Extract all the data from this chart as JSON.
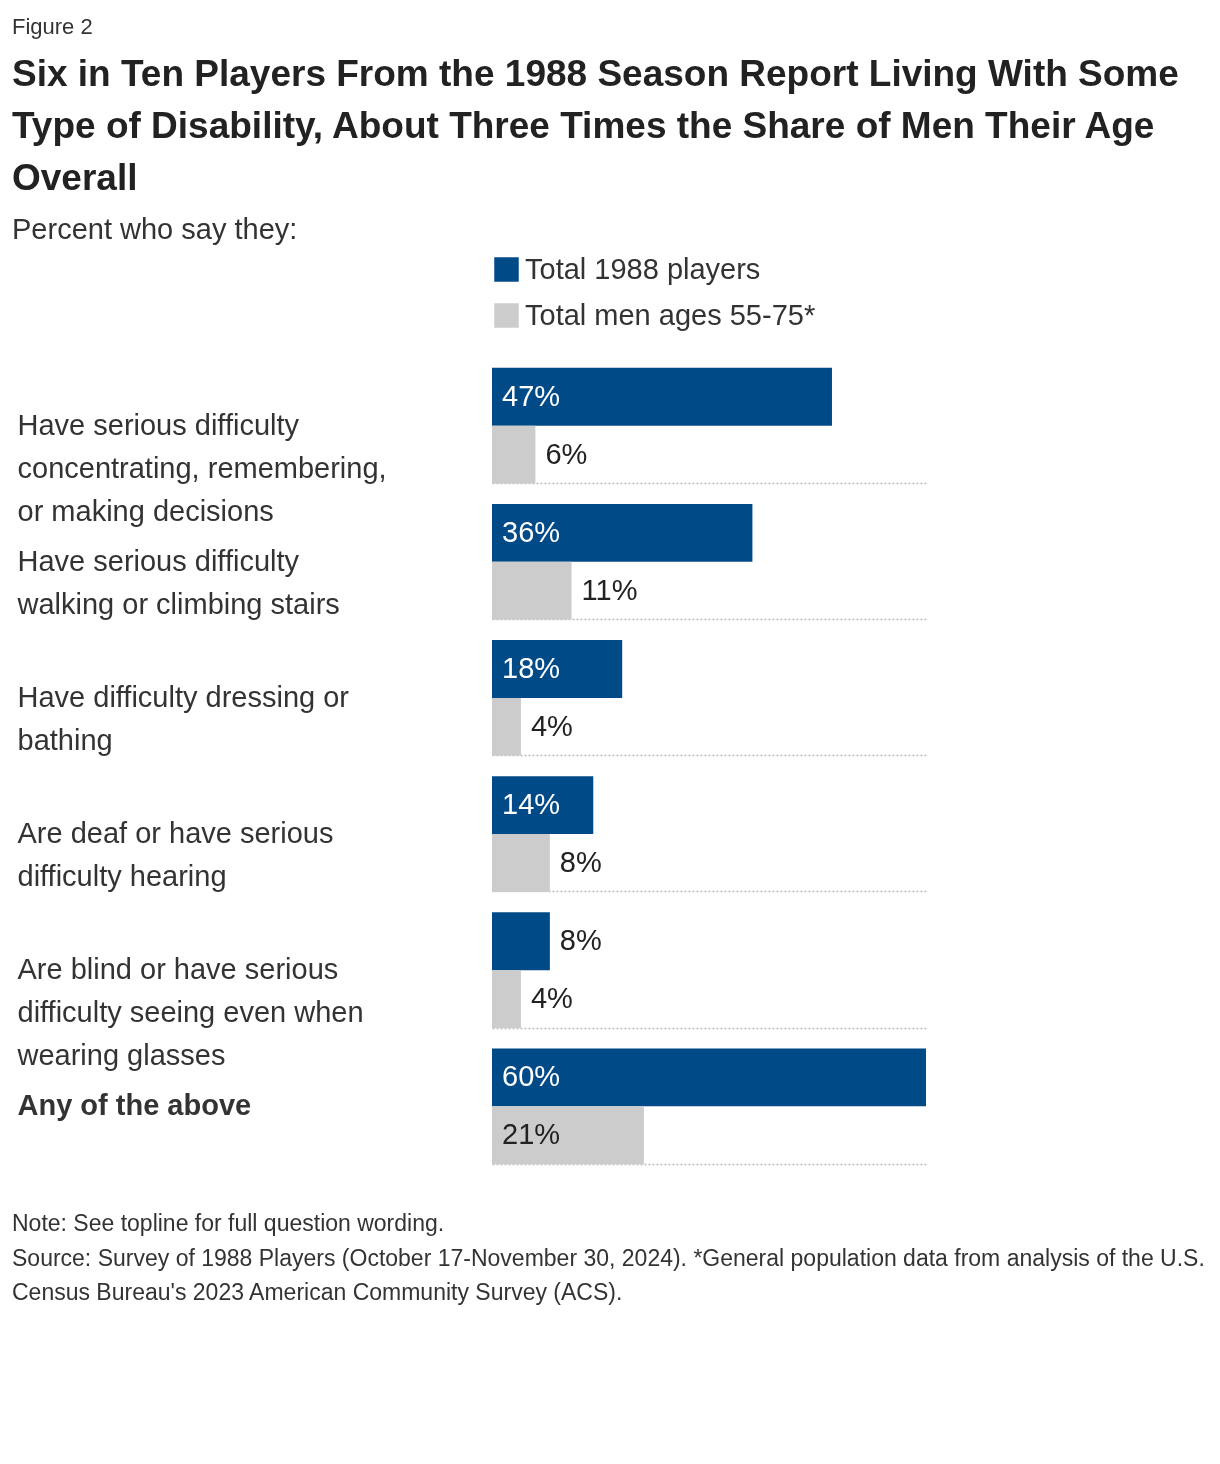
{
  "chart_data": {
    "type": "bar",
    "orientation": "horizontal",
    "title": "Six in Ten Players From the 1988 Season Report Living With Some Type of Disability, About Three Times the Share of Men Their Age Overall",
    "subtitle": "Percent who say they:",
    "categories": [
      "Have serious difficulty concentrating, remembering, or making decisions",
      "Have serious difficulty walking or climbing stairs",
      "Have difficulty dressing or bathing",
      "Are deaf or have serious difficulty hearing",
      "Are blind or have serious difficulty seeing even when wearing glasses",
      "Any of the above"
    ],
    "series": [
      {
        "name": "Total 1988 players",
        "color": "#004a87",
        "values": [
          47,
          36,
          18,
          14,
          8,
          60
        ],
        "value_labels": [
          "47%",
          "36%",
          "18%",
          "14%",
          "8%",
          "60%"
        ]
      },
      {
        "name": "Total men ages 55-75*",
        "color": "#cccccc",
        "values": [
          6,
          11,
          4,
          8,
          4,
          21
        ],
        "value_labels": [
          "6%",
          "11%",
          "4%",
          "8%",
          "4%",
          "21%"
        ]
      }
    ],
    "legend": "top left",
    "grid": "y",
    "annotations": [
      "Figure 2",
      "Note: See topline for full question wording.",
      "Source: Survey of 1988 Players (October 17-November 30, 2024). *General population data from analysis of the U.S. Census Bureau's 2023 American Community Survey (ACS)."
    ]
  }
}
